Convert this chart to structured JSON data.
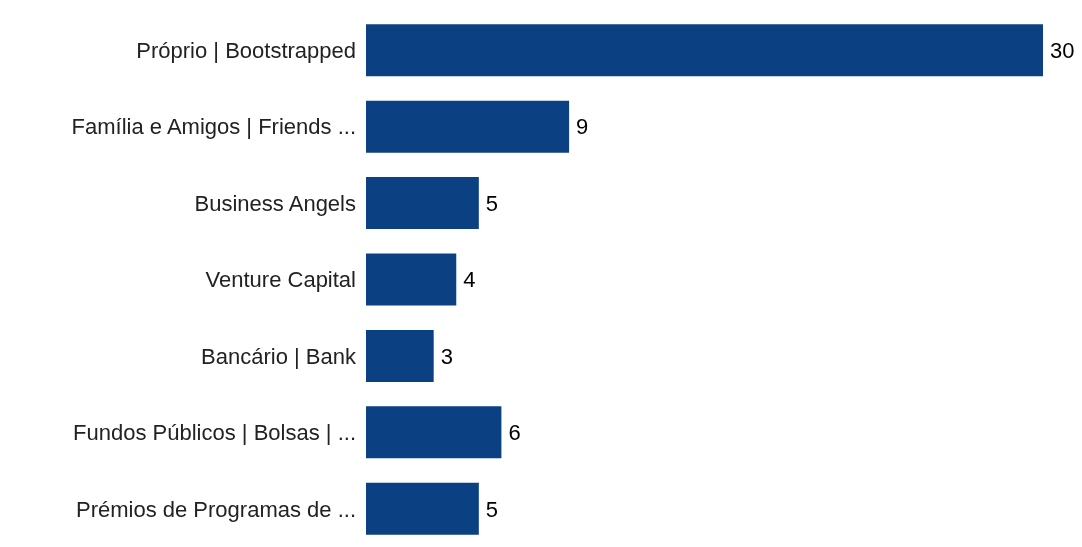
{
  "chart_data": {
    "type": "bar",
    "orientation": "horizontal",
    "categories": [
      "Próprio | Bootstrapped",
      "Família e Amigos | Friends ...",
      "Business Angels",
      "Venture Capital",
      "Bancário | Bank",
      "Fundos Públicos | Bolsas | ...",
      "Prémios de Programas de ..."
    ],
    "values": [
      30,
      9,
      5,
      4,
      3,
      6,
      5
    ],
    "color": "#0b4182",
    "data_labels": true
  }
}
